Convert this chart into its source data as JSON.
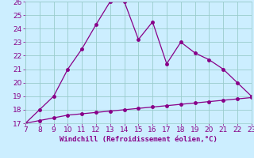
{
  "x": [
    7,
    8,
    9,
    10,
    11,
    12,
    13,
    14,
    15,
    16,
    17,
    18,
    19,
    20,
    21,
    22,
    23
  ],
  "y_upper": [
    17.0,
    18.0,
    19.0,
    21.0,
    22.5,
    24.3,
    26.0,
    26.0,
    23.2,
    24.5,
    21.4,
    23.0,
    22.2,
    21.7,
    21.0,
    20.0,
    19.0
  ],
  "y_lower": [
    17.0,
    17.2,
    17.4,
    17.6,
    17.7,
    17.8,
    17.9,
    18.0,
    18.1,
    18.2,
    18.3,
    18.4,
    18.5,
    18.6,
    18.7,
    18.8,
    18.9
  ],
  "line_color": "#880088",
  "bg_color": "#cceeff",
  "grid_color": "#99cccc",
  "xlabel": "Windchill (Refroidissement éolien,°C)",
  "xlabel_color": "#880088",
  "ylim": [
    17,
    26
  ],
  "xlim": [
    7,
    23
  ],
  "yticks": [
    17,
    18,
    19,
    20,
    21,
    22,
    23,
    24,
    25,
    26
  ],
  "xticks": [
    7,
    8,
    9,
    10,
    11,
    12,
    13,
    14,
    15,
    16,
    17,
    18,
    19,
    20,
    21,
    22,
    23
  ],
  "tick_color": "#880088",
  "font_size": 6.5,
  "marker_size": 2.5,
  "linewidth": 0.9
}
